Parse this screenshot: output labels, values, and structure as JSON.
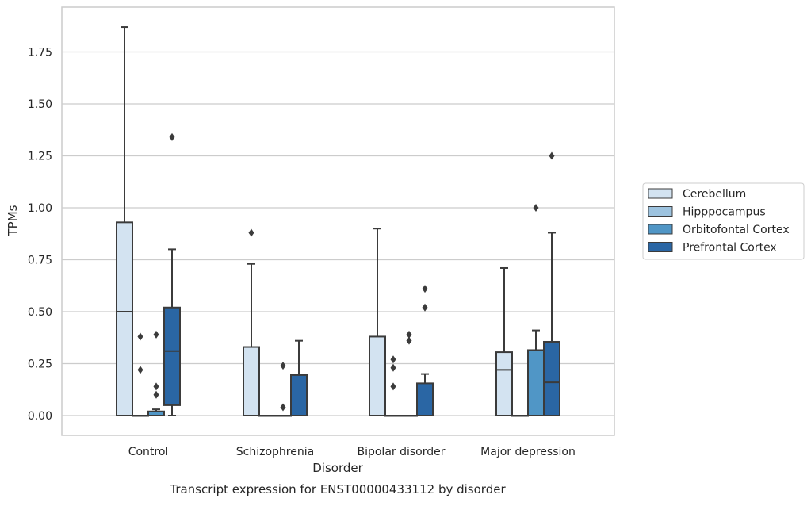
{
  "chart_data": {
    "type": "box",
    "title": "",
    "caption": "Transcript expression for ENST00000433112 by disorder",
    "xlabel": "Disorder",
    "ylabel": "TPMs",
    "ylim": [
      -0.09,
      1.97
    ],
    "yticks": [
      0.0,
      0.25,
      0.5,
      0.75,
      1.0,
      1.25,
      1.5,
      1.75
    ],
    "ytick_labels": [
      "0.00",
      "0.25",
      "0.50",
      "0.75",
      "1.00",
      "1.25",
      "1.50",
      "1.75"
    ],
    "grid": true,
    "legend_position": "right",
    "categories": [
      "Control",
      "Schizophrenia",
      "Bipolar disorder",
      "Major depression"
    ],
    "series": [
      {
        "name": "Cerebellum",
        "color": "#d3e3f1",
        "boxes": [
          {
            "category": "Control",
            "whisker_low": 0.0,
            "q1": 0.0,
            "median": 0.5,
            "q3": 0.93,
            "whisker_high": 1.87,
            "outliers": []
          },
          {
            "category": "Schizophrenia",
            "whisker_low": 0.0,
            "q1": 0.0,
            "median": 0.0,
            "q3": 0.33,
            "whisker_high": 0.73,
            "outliers": [
              0.88
            ]
          },
          {
            "category": "Bipolar disorder",
            "whisker_low": 0.0,
            "q1": 0.0,
            "median": 0.0,
            "q3": 0.38,
            "whisker_high": 0.9,
            "outliers": []
          },
          {
            "category": "Major depression",
            "whisker_low": 0.0,
            "q1": 0.0,
            "median": 0.22,
            "q3": 0.305,
            "whisker_high": 0.71,
            "outliers": []
          }
        ]
      },
      {
        "name": "Hipppocampus",
        "color": "#9dc3df",
        "boxes": [
          {
            "category": "Control",
            "whisker_low": 0.0,
            "q1": 0.0,
            "median": 0.0,
            "q3": 0.0,
            "whisker_high": 0.0,
            "outliers": [
              0.38,
              0.22
            ]
          },
          {
            "category": "Schizophrenia",
            "whisker_low": 0.0,
            "q1": 0.0,
            "median": 0.0,
            "q3": 0.0,
            "whisker_high": 0.0,
            "outliers": []
          },
          {
            "category": "Bipolar disorder",
            "whisker_low": 0.0,
            "q1": 0.0,
            "median": 0.0,
            "q3": 0.0,
            "whisker_high": 0.0,
            "outliers": [
              0.27,
              0.23,
              0.14
            ]
          },
          {
            "category": "Major depression",
            "whisker_low": 0.0,
            "q1": 0.0,
            "median": 0.0,
            "q3": 0.0,
            "whisker_high": 0.0,
            "outliers": []
          }
        ]
      },
      {
        "name": "Orbitofontal Cortex",
        "color": "#5096c6",
        "boxes": [
          {
            "category": "Control",
            "whisker_low": 0.0,
            "q1": 0.0,
            "median": 0.0,
            "q3": 0.02,
            "whisker_high": 0.03,
            "outliers": [
              0.39,
              0.14,
              0.1
            ]
          },
          {
            "category": "Schizophrenia",
            "whisker_low": 0.0,
            "q1": 0.0,
            "median": 0.0,
            "q3": 0.0,
            "whisker_high": 0.0,
            "outliers": [
              0.24,
              0.04
            ]
          },
          {
            "category": "Bipolar disorder",
            "whisker_low": 0.0,
            "q1": 0.0,
            "median": 0.0,
            "q3": 0.0,
            "whisker_high": 0.0,
            "outliers": [
              0.39,
              0.36
            ]
          },
          {
            "category": "Major depression",
            "whisker_low": 0.0,
            "q1": 0.0,
            "median": 0.0,
            "q3": 0.315,
            "whisker_high": 0.41,
            "outliers": [
              1.0
            ]
          }
        ]
      },
      {
        "name": "Prefrontal Cortex",
        "color": "#2a66a4",
        "boxes": [
          {
            "category": "Control",
            "whisker_low": 0.0,
            "q1": 0.05,
            "median": 0.31,
            "q3": 0.52,
            "whisker_high": 0.8,
            "outliers": [
              1.34
            ]
          },
          {
            "category": "Schizophrenia",
            "whisker_low": 0.0,
            "q1": 0.0,
            "median": 0.0,
            "q3": 0.195,
            "whisker_high": 0.36,
            "outliers": []
          },
          {
            "category": "Bipolar disorder",
            "whisker_low": 0.0,
            "q1": 0.0,
            "median": 0.0,
            "q3": 0.155,
            "whisker_high": 0.2,
            "outliers": [
              0.61,
              0.52
            ]
          },
          {
            "category": "Major depression",
            "whisker_low": 0.0,
            "q1": 0.0,
            "median": 0.16,
            "q3": 0.355,
            "whisker_high": 0.88,
            "outliers": [
              1.25
            ]
          }
        ]
      }
    ]
  }
}
